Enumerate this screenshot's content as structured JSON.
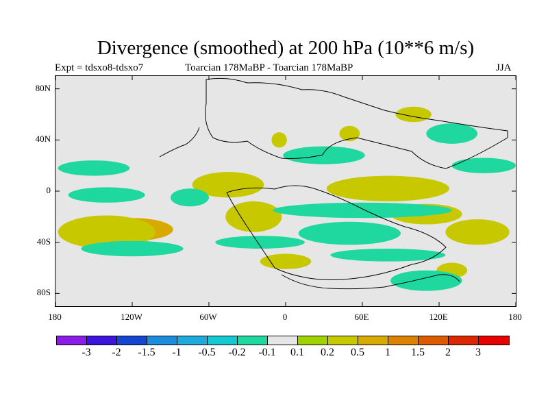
{
  "title": "Divergence (smoothed) at 200 hPa (10**6 m/s)",
  "subtitle_left": "Expt = tdsxo8-tdsxo7",
  "subtitle_center": "Toarcian 178MaBP - Toarcian 178MaBP",
  "subtitle_right": "JJA",
  "chart_data": {
    "type": "heatmap",
    "title": "Divergence (smoothed) at 200 hPa (10**6 m/s)",
    "variable": "Divergence (smoothed) at 200 hPa",
    "units": "10**6 m/s",
    "xlabel": "",
    "ylabel": "",
    "lon_range": [
      -180,
      180
    ],
    "lat_range": [
      -90,
      90
    ],
    "x_ticks": [
      {
        "label": "180",
        "lon": -180
      },
      {
        "label": "120W",
        "lon": -120
      },
      {
        "label": "60W",
        "lon": -60
      },
      {
        "label": "0",
        "lon": 0
      },
      {
        "label": "60E",
        "lon": 60
      },
      {
        "label": "120E",
        "lon": 120
      },
      {
        "label": "180",
        "lon": 180
      }
    ],
    "y_ticks": [
      {
        "label": "80N",
        "lat": 80
      },
      {
        "label": "40N",
        "lat": 40
      },
      {
        "label": "0",
        "lat": 0
      },
      {
        "label": "40S",
        "lat": -40
      },
      {
        "label": "80S",
        "lat": -80
      }
    ],
    "colorbar_levels": [
      "-3",
      "-2",
      "-1.5",
      "-1",
      "-0.5",
      "-0.2",
      "-0.1",
      "0.1",
      "0.2",
      "0.5",
      "1",
      "1.5",
      "2",
      "3"
    ],
    "colorbar_colors": [
      "#8a1ee6",
      "#3c14dc",
      "#1446d2",
      "#1e8cdc",
      "#1eaadc",
      "#14c8d2",
      "#1ed8a0",
      "#e6e6e6",
      "#a0d200",
      "#c8c800",
      "#d8aa00",
      "#dc8200",
      "#dc5a00",
      "#dc2800",
      "#e60000"
    ],
    "regions": [
      {
        "sign": "positive",
        "level": 0.5,
        "lon": -120,
        "lat": -30,
        "rlon": 32,
        "rlat": 9
      },
      {
        "sign": "positive",
        "level": 0.2,
        "lon": -140,
        "lat": -32,
        "rlon": 38,
        "rlat": 13
      },
      {
        "sign": "positive",
        "level": 0.5,
        "lon": -55,
        "lat": 5,
        "rlon": 12,
        "rlat": 5
      },
      {
        "sign": "positive",
        "level": 0.2,
        "lon": -45,
        "lat": 5,
        "rlon": 28,
        "rlat": 10
      },
      {
        "sign": "positive",
        "level": 0.5,
        "lon": -30,
        "lat": -20,
        "rlon": 14,
        "rlat": 8
      },
      {
        "sign": "positive",
        "level": 0.2,
        "lon": -25,
        "lat": -20,
        "rlon": 22,
        "rlat": 12
      },
      {
        "sign": "positive",
        "level": 0.5,
        "lon": 80,
        "lat": 2,
        "rlon": 30,
        "rlat": 5
      },
      {
        "sign": "positive",
        "level": 0.2,
        "lon": 80,
        "lat": 2,
        "rlon": 48,
        "rlat": 10
      },
      {
        "sign": "positive",
        "level": 0.2,
        "lon": 150,
        "lat": -32,
        "rlon": 25,
        "rlat": 10
      },
      {
        "sign": "positive",
        "level": 0.2,
        "lon": 110,
        "lat": -18,
        "rlon": 28,
        "rlat": 8
      },
      {
        "sign": "positive",
        "level": 0.2,
        "lon": 50,
        "lat": 45,
        "rlon": 8,
        "rlat": 6
      },
      {
        "sign": "positive",
        "level": 0.2,
        "lon": -5,
        "lat": 40,
        "rlon": 6,
        "rlat": 6
      },
      {
        "sign": "positive",
        "level": 0.2,
        "lon": 100,
        "lat": 60,
        "rlon": 14,
        "rlat": 6
      },
      {
        "sign": "positive",
        "level": 0.2,
        "lon": 0,
        "lat": -55,
        "rlon": 20,
        "rlat": 6
      },
      {
        "sign": "positive",
        "level": 0.2,
        "lon": 130,
        "lat": -62,
        "rlon": 12,
        "rlat": 6
      },
      {
        "sign": "negative",
        "level": -0.2,
        "lon": 30,
        "lat": 28,
        "rlon": 32,
        "rlat": 7
      },
      {
        "sign": "negative",
        "level": -0.2,
        "lon": -150,
        "lat": 18,
        "rlon": 28,
        "rlat": 6
      },
      {
        "sign": "negative",
        "level": -0.2,
        "lon": -140,
        "lat": -3,
        "rlon": 30,
        "rlat": 6
      },
      {
        "sign": "negative",
        "level": -0.2,
        "lon": 60,
        "lat": -15,
        "rlon": 70,
        "rlat": 6
      },
      {
        "sign": "negative",
        "level": -0.5,
        "lon": 45,
        "lat": -33,
        "rlon": 14,
        "rlat": 5
      },
      {
        "sign": "negative",
        "level": -0.2,
        "lon": 50,
        "lat": -33,
        "rlon": 40,
        "rlat": 9
      },
      {
        "sign": "negative",
        "level": -0.2,
        "lon": -75,
        "lat": -5,
        "rlon": 15,
        "rlat": 7
      },
      {
        "sign": "negative",
        "level": -0.2,
        "lon": 130,
        "lat": 45,
        "rlon": 20,
        "rlat": 8
      },
      {
        "sign": "negative",
        "level": -0.2,
        "lon": 155,
        "lat": 20,
        "rlon": 25,
        "rlat": 6
      },
      {
        "sign": "negative",
        "level": -0.2,
        "lon": -120,
        "lat": -45,
        "rlon": 40,
        "rlat": 6
      },
      {
        "sign": "negative",
        "level": -0.2,
        "lon": 110,
        "lat": -70,
        "rlon": 28,
        "rlat": 8
      },
      {
        "sign": "negative",
        "level": -0.2,
        "lon": 80,
        "lat": -50,
        "rlon": 45,
        "rlat": 5
      },
      {
        "sign": "negative",
        "level": -0.2,
        "lon": -20,
        "lat": -40,
        "rlon": 35,
        "rlat": 5
      }
    ]
  }
}
